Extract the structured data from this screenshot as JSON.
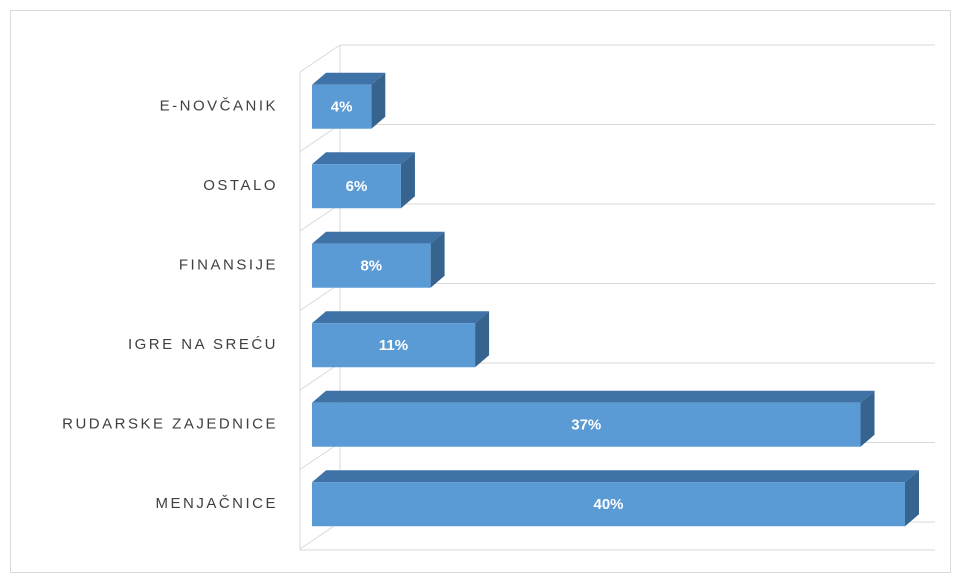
{
  "chart_data": {
    "type": "bar3d_horizontal",
    "categories": [
      "E-NOVČANIK",
      "OSTALO",
      "FINANSIJE",
      "IGRE NA SREĆU",
      "RUDARSKE ZAJEDNICE",
      "MENJAČNICE"
    ],
    "values": [
      4,
      6,
      8,
      11,
      37,
      40
    ],
    "value_labels": [
      "4%",
      "6%",
      "8%",
      "11%",
      "37%",
      "40%"
    ],
    "color": "#5b9bd5",
    "grid": true
  }
}
